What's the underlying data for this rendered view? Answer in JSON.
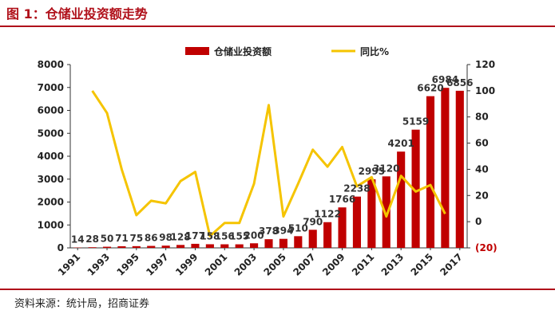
{
  "figure": {
    "title": "图 1：仓储业投资额走势",
    "source": "资料来源：统计局，招商证券"
  },
  "chart_data": {
    "type": "bar",
    "title": "",
    "categories": [
      "1991",
      "1992",
      "1993",
      "1994",
      "1995",
      "1996",
      "1997",
      "1998",
      "1999",
      "2000",
      "2001",
      "2002",
      "2003",
      "2004",
      "2005",
      "2006",
      "2007",
      "2008",
      "2009",
      "2010",
      "2011",
      "2012",
      "2013",
      "2014",
      "2015",
      "2016",
      "2017"
    ],
    "x_tick_labels": [
      "1991",
      "1993",
      "1995",
      "1997",
      "1999",
      "2001",
      "2003",
      "2005",
      "2007",
      "2009",
      "2011",
      "2013",
      "2015",
      "2017"
    ],
    "series": [
      {
        "name": "仓储业投资额",
        "type": "bar",
        "axis": "left",
        "color": "#c00000",
        "values": [
          14,
          28,
          50,
          71,
          75,
          86,
          98,
          128,
          177,
          158,
          156,
          155,
          200,
          378,
          394,
          510,
          790,
          1122,
          1766,
          2238,
          2995,
          3120,
          4201,
          5159,
          6620,
          6984,
          6856
        ]
      },
      {
        "name": "同比%",
        "type": "line",
        "axis": "right",
        "color": "#f5c400",
        "values": [
          null,
          100,
          83,
          40,
          5,
          16,
          14,
          31,
          38,
          -11,
          -1,
          -1,
          29,
          89,
          4,
          29,
          55,
          42,
          57,
          27,
          34,
          4,
          35,
          23,
          28,
          6,
          null
        ]
      }
    ],
    "data_labels": [
      "14",
      "28",
      "50",
      "71",
      "75",
      "86",
      "98",
      "128",
      "177",
      "158",
      "156",
      "155",
      "200",
      "378",
      "394",
      "510",
      "790",
      "1122",
      "1766",
      "2238",
      "2995",
      "3120",
      "4201",
      "5159",
      "6620",
      "6984",
      "6856"
    ],
    "y_left": {
      "ylim": [
        0,
        8000
      ],
      "ticks": [
        "0",
        "1000",
        "2000",
        "3000",
        "4000",
        "5000",
        "6000",
        "7000",
        "8000"
      ]
    },
    "y_right": {
      "ylim": [
        -20,
        120
      ],
      "ticks": [
        "(20)",
        "0",
        "20",
        "40",
        "60",
        "80",
        "100",
        "120"
      ]
    },
    "legend_position": "top",
    "grid": false
  }
}
